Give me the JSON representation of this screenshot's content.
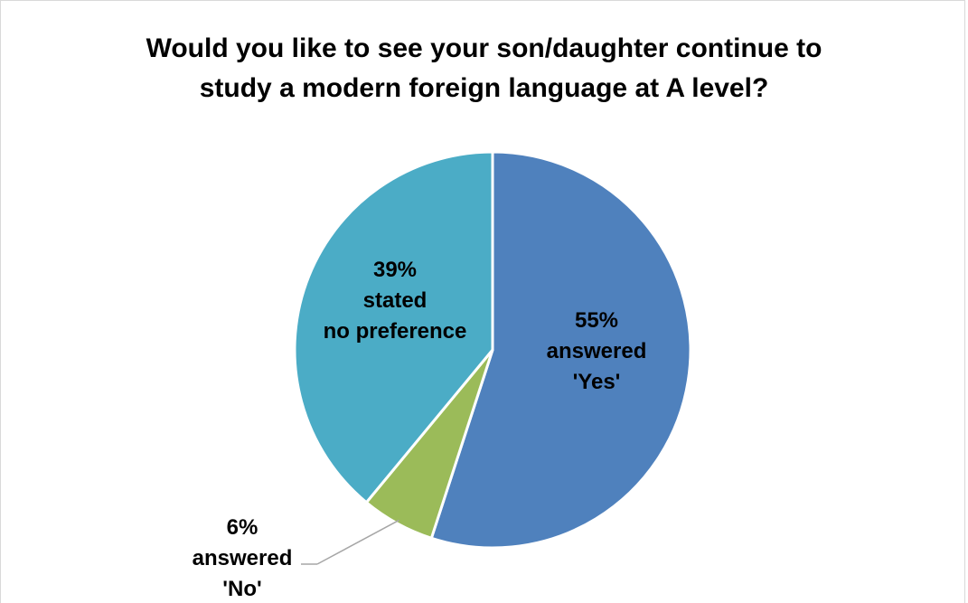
{
  "chart_data": {
    "type": "pie",
    "title_lines": [
      "Would you like to see your son/daughter continue to",
      "study a modern foreign language at A level?"
    ],
    "slices": [
      {
        "name": "answered 'Yes'",
        "value": 55,
        "color": "#4f81bd",
        "label_lines": [
          "55%",
          "answered",
          "'Yes'"
        ]
      },
      {
        "name": "answered 'No'",
        "value": 6,
        "color": "#9bbb59",
        "label_lines": [
          "6%",
          "answered",
          "'No'"
        ]
      },
      {
        "name": "stated no preference",
        "value": 39,
        "color": "#4bacc6",
        "label_lines": [
          "39%",
          "stated",
          "no preference"
        ]
      }
    ],
    "start_angle": "12 o'clock",
    "direction": "clockwise",
    "legend": "none"
  }
}
